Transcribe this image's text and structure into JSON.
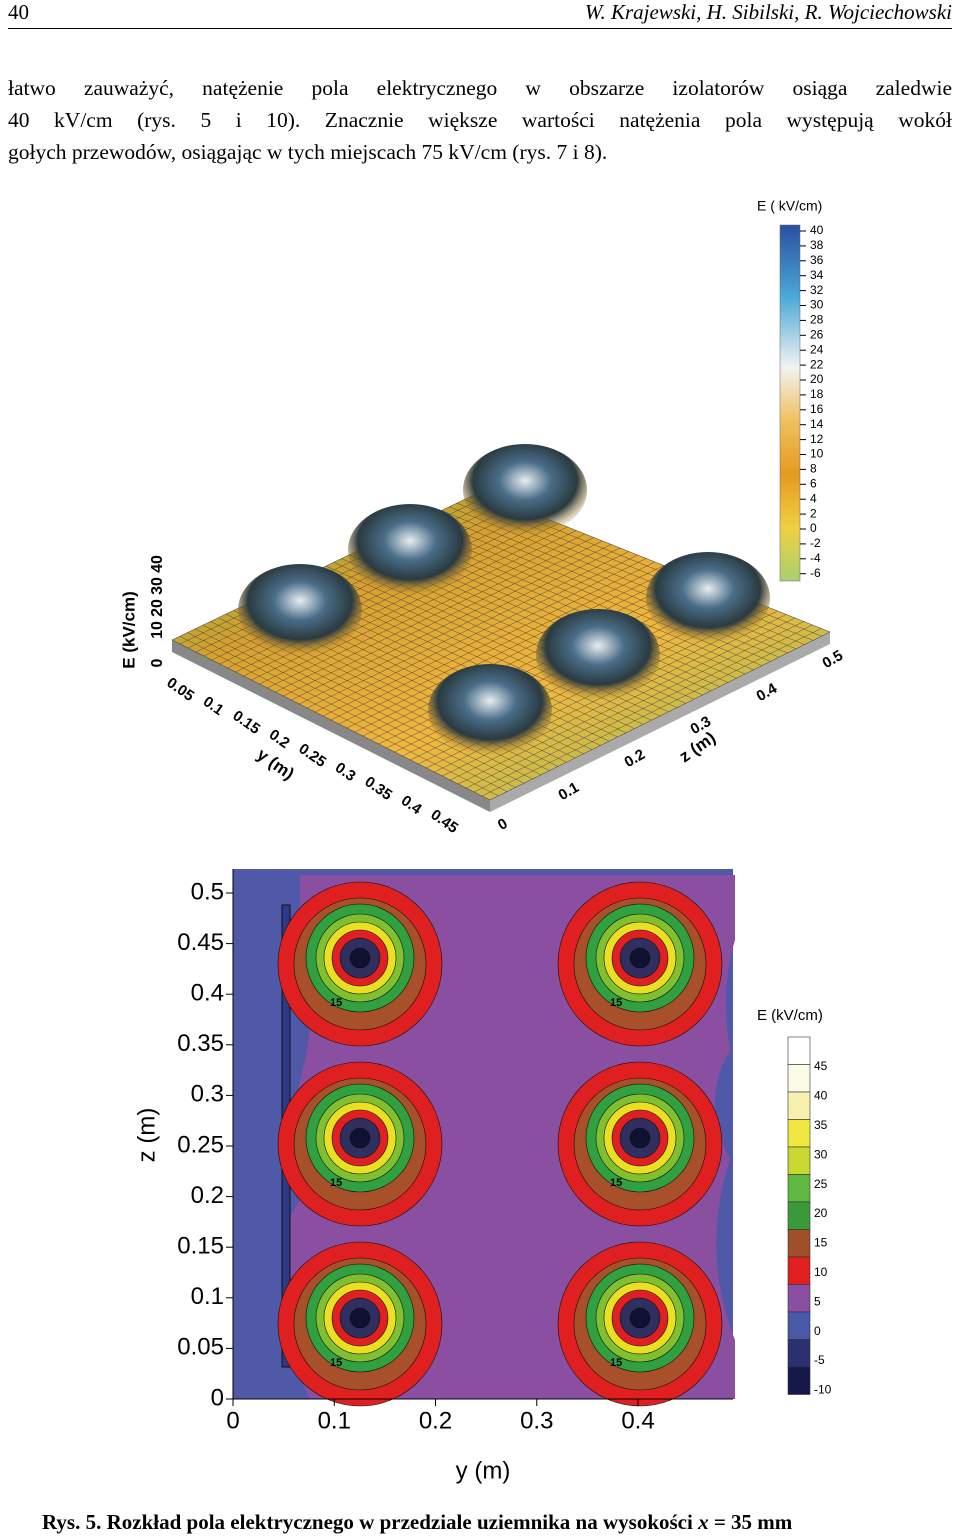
{
  "header": {
    "page_number": "40",
    "authors": "W. Krajewski, H. Sibilski, R. Wojciechowski"
  },
  "body": {
    "lines": [
      "łatwo zauważyć, natężenie pola elektrycznego w obszarze izolatorów osiąga zaledwie",
      "40 kV/cm (rys. 5 i 10). Znacznie większe wartości natężenia pola występują wokół",
      "gołych przewodów, osiągając w tych miejscach 75 kV/cm (rys. 7 i 8)."
    ]
  },
  "figure_3d": {
    "colorbar_title": "E ( kV/cm)",
    "colorbar_ticks": [
      "40",
      "38",
      "36",
      "34",
      "32",
      "30",
      "28",
      "26",
      "24",
      "22",
      "20",
      "18",
      "16",
      "14",
      "12",
      "10",
      "8",
      "6",
      "4",
      "2",
      "0",
      "-2",
      "-4",
      "-6"
    ],
    "value_axis_label": "E (kV/cm)",
    "value_ticks": [
      "0",
      "10",
      "20",
      "30",
      "40"
    ],
    "y_axis_label": "y (m)",
    "y_ticks": [
      "0.05",
      "0.1",
      "0.15",
      "0.2",
      "0.25",
      "0.3",
      "0.35",
      "0.4",
      "0.45"
    ],
    "z_axis_label": "z (m)",
    "z_ticks": [
      "0",
      "0.1",
      "0.2",
      "0.3",
      "0.4",
      "0.5"
    ]
  },
  "figure_contour": {
    "y_axis_label": "z (m)",
    "y_ticks": [
      "0",
      "0.05",
      "0.1",
      "0.15",
      "0.2",
      "0.25",
      "0.3",
      "0.35",
      "0.4",
      "0.45",
      "0.5"
    ],
    "x_axis_label": "y (m)",
    "x_ticks": [
      "0",
      "0.1",
      "0.2",
      "0.3",
      "0.4"
    ],
    "colorbar_title": "E (kV/cm)",
    "colorbar_ticks": [
      "45",
      "40",
      "35",
      "30",
      "25",
      "20",
      "15",
      "10",
      "5",
      "0",
      "-5",
      "-10"
    ],
    "contour_labels": [
      "15",
      "15",
      "15",
      "15",
      "15",
      "15"
    ]
  },
  "caption": {
    "label": "Rys. 5.",
    "text": "Rozkład pola elektrycznego w przedziale uziemnika na wysokości",
    "variable": "x",
    "rest": "= 35 mm"
  }
}
